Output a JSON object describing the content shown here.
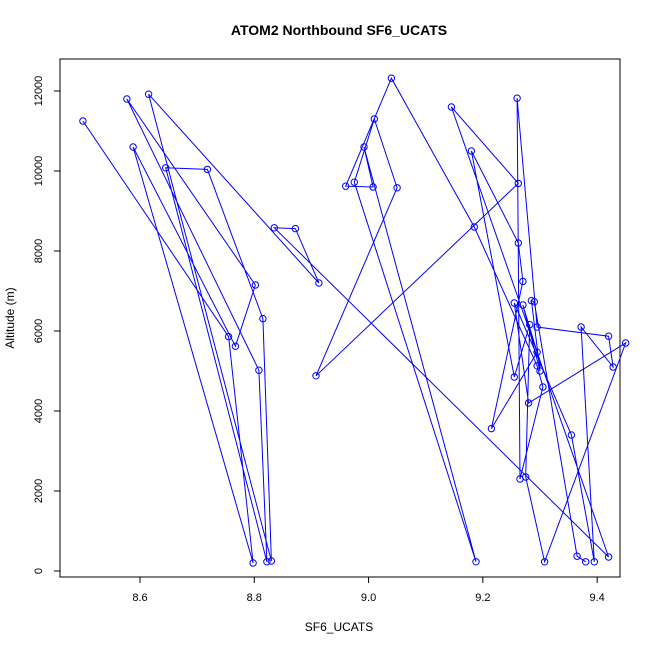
{
  "chart_data": {
    "type": "line",
    "title": "ATOM2 Northbound SF6_UCATS",
    "xlabel": "SF6_UCATS",
    "ylabel": "Altitude (m)",
    "xlim": [
      8.46,
      9.44
    ],
    "ylim": [
      -150,
      12800
    ],
    "xticks": [
      8.6,
      8.8,
      9.0,
      9.2,
      9.4
    ],
    "xtick_labels": [
      "8.6",
      "8.8",
      "9.0",
      "9.2",
      "9.4"
    ],
    "yticks": [
      0,
      2000,
      4000,
      6000,
      8000,
      10000,
      12000
    ],
    "ytick_labels": [
      "0",
      "2000",
      "4000",
      "6000",
      "8000",
      "10000",
      "12000"
    ],
    "grid": false,
    "series": [
      {
        "color": "#0000ff",
        "marker": "open-circle",
        "x": [
          8.5,
          8.755,
          8.798,
          8.588,
          8.767,
          8.802,
          8.577,
          8.808,
          8.822,
          8.645,
          8.718,
          8.815,
          8.83,
          8.615,
          8.913,
          8.872,
          8.835,
          9.42,
          9.145,
          9.262,
          8.908,
          9.05,
          9.01,
          8.975,
          9.188,
          8.992,
          9.008,
          8.96,
          9.04,
          9.185,
          9.295,
          9.305,
          9.265,
          9.26,
          9.295,
          9.42,
          9.428,
          9.372,
          9.395,
          9.355,
          9.255,
          9.28,
          9.45,
          9.308,
          9.275,
          9.282,
          9.255,
          9.18,
          9.262,
          9.27,
          9.215,
          9.295,
          9.27,
          9.3,
          9.285,
          9.29,
          9.365,
          9.38
        ],
        "y": [
          11250,
          5860,
          200,
          10600,
          5620,
          7150,
          11800,
          5020,
          230,
          10080,
          10040,
          6310,
          250,
          11920,
          7200,
          8560,
          8580,
          350,
          11600,
          9690,
          4880,
          9580,
          11300,
          9720,
          230,
          10600,
          9600,
          9620,
          12320,
          8600,
          5130,
          4600,
          2300,
          11820,
          6100,
          5870,
          5100,
          6100,
          230,
          3400,
          6700,
          4200,
          5700,
          230,
          2350,
          6160,
          4850,
          10500,
          8200,
          7240,
          3560,
          5470,
          6650,
          5000,
          6760,
          6730,
          370,
          230
        ]
      }
    ]
  }
}
